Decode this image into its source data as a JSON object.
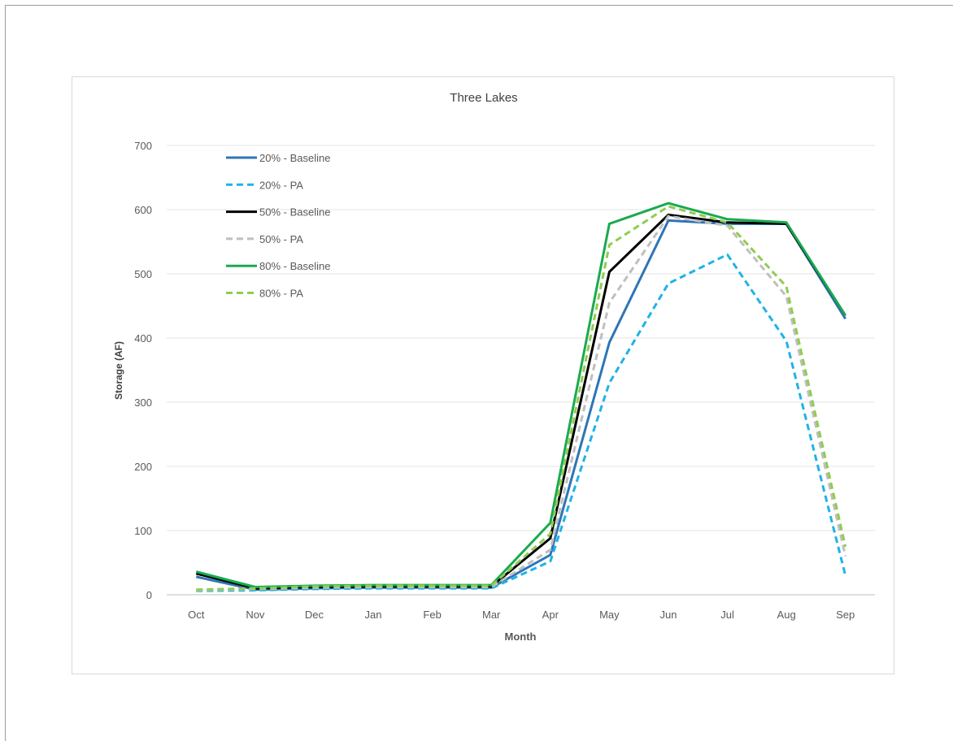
{
  "chart_data": {
    "type": "line",
    "title": "Three Lakes",
    "xlabel": "Month",
    "ylabel": "Storage (AF)",
    "ylim": [
      0,
      700
    ],
    "yticks": [
      0,
      100,
      200,
      300,
      400,
      500,
      600,
      700
    ],
    "grid": true,
    "legend_position": "top-left",
    "categories": [
      "Oct",
      "Nov",
      "Dec",
      "Jan",
      "Feb",
      "Mar",
      "Apr",
      "May",
      "Jun",
      "Jul",
      "Aug",
      "Sep"
    ],
    "series": [
      {
        "name": "20% - Baseline",
        "color": "#2e75b6",
        "dashed": false,
        "values": [
          28,
          8,
          10,
          11,
          11,
          11,
          62,
          393,
          583,
          578,
          578,
          430
        ]
      },
      {
        "name": "20% - PA",
        "color": "#1fb3e6",
        "dashed": true,
        "values": [
          6,
          7,
          9,
          10,
          10,
          10,
          52,
          330,
          485,
          530,
          395,
          30
        ]
      },
      {
        "name": "50% - Baseline",
        "color": "#000000",
        "dashed": false,
        "values": [
          33,
          10,
          12,
          13,
          13,
          13,
          88,
          503,
          592,
          580,
          578,
          435
        ]
      },
      {
        "name": "50% - PA",
        "color": "#bfbfbf",
        "dashed": true,
        "values": [
          7,
          9,
          11,
          12,
          12,
          12,
          70,
          455,
          590,
          575,
          465,
          60
        ]
      },
      {
        "name": "80% - Baseline",
        "color": "#1aaa4f",
        "dashed": false,
        "values": [
          36,
          12,
          14,
          15,
          15,
          15,
          112,
          578,
          610,
          585,
          580,
          435
        ]
      },
      {
        "name": "80% - PA",
        "color": "#8fcd4f",
        "dashed": true,
        "values": [
          8,
          10,
          13,
          14,
          14,
          14,
          95,
          545,
          605,
          580,
          480,
          75
        ]
      }
    ]
  }
}
